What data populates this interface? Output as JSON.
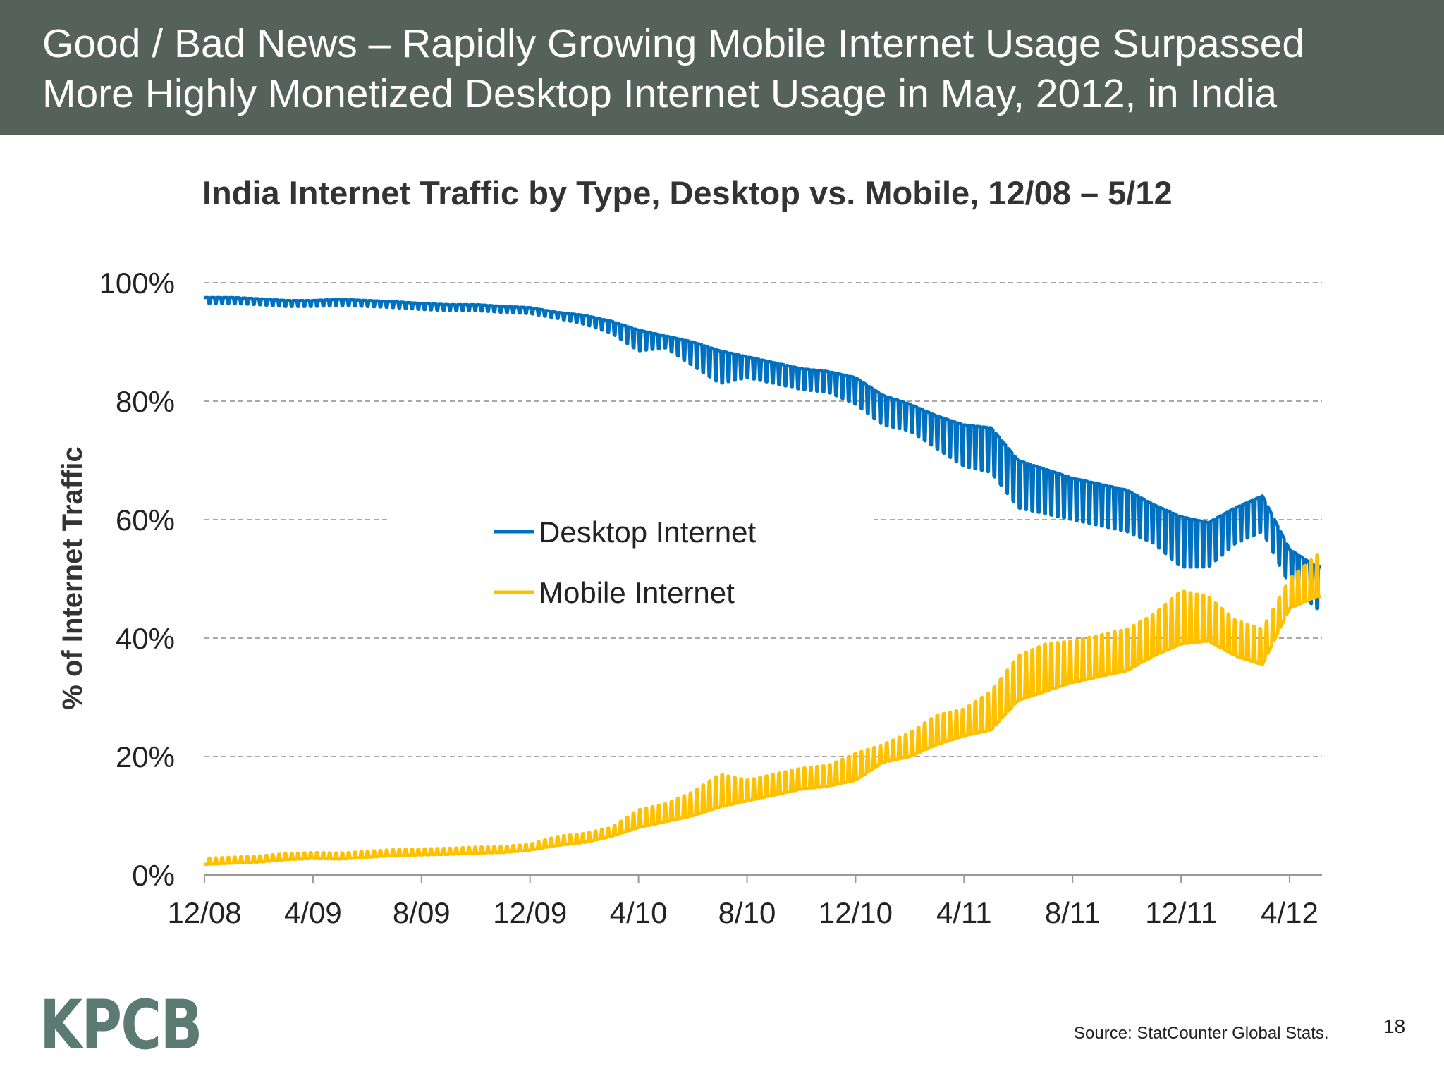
{
  "header": {
    "line1": "Good / Bad News – Rapidly Growing Mobile Internet Usage Surpassed",
    "line2": "More Highly Monetized Desktop Internet Usage in May, 2012, in India"
  },
  "chart_data": {
    "type": "line",
    "title": "India Internet Traffic by Type, Desktop vs. Mobile, 12/08 – 5/12",
    "ylabel": "% of Internet Traffic",
    "xlabel": "",
    "ylim": [
      0,
      100
    ],
    "yticks": [
      "0%",
      "20%",
      "40%",
      "60%",
      "80%",
      "100%"
    ],
    "xticks": [
      "12/08",
      "4/09",
      "8/09",
      "12/09",
      "4/10",
      "8/10",
      "12/10",
      "4/11",
      "8/11",
      "12/11",
      "4/12"
    ],
    "grid": true,
    "legend_position": "center",
    "months": [
      "12/08",
      "1/09",
      "2/09",
      "3/09",
      "4/09",
      "5/09",
      "6/09",
      "7/09",
      "8/09",
      "9/09",
      "10/09",
      "11/09",
      "12/09",
      "1/10",
      "2/10",
      "3/10",
      "4/10",
      "5/10",
      "6/10",
      "7/10",
      "8/10",
      "9/10",
      "10/10",
      "11/10",
      "12/10",
      "1/11",
      "2/11",
      "3/11",
      "4/11",
      "5/11",
      "6/11",
      "7/11",
      "8/11",
      "9/11",
      "10/11",
      "11/11",
      "12/11",
      "1/12",
      "2/12",
      "3/12",
      "4/12",
      "5/12"
    ],
    "series": [
      {
        "name": "Desktop Internet",
        "color": "#0070c0",
        "weekday_values": [
          97.5,
          97.5,
          97.3,
          97,
          97,
          97.2,
          97,
          96.8,
          96.5,
          96.3,
          96.3,
          96,
          95.8,
          95,
          94.5,
          93.5,
          92,
          91,
          90,
          88.5,
          87.5,
          86.5,
          85.5,
          85,
          84,
          81,
          79.5,
          77.5,
          76,
          75.5,
          70,
          68.5,
          67,
          66,
          65,
          62.5,
          60.5,
          59.5,
          62,
          64,
          55,
          52
        ],
        "weekend_values": [
          96.5,
          96.5,
          96.3,
          96,
          96,
          96.2,
          96,
          95.8,
          95.5,
          95.3,
          95.3,
          95,
          94.8,
          94,
          93,
          91.5,
          88.5,
          89,
          86,
          83,
          84,
          83,
          82,
          81.5,
          79.5,
          76,
          75,
          72,
          69,
          68,
          62,
          61,
          60,
          59,
          58,
          56,
          52,
          52,
          56,
          58,
          49,
          45
        ]
      },
      {
        "name": "Mobile Internet",
        "color": "#ffc000",
        "weekday_values": [
          1.8,
          2,
          2.2,
          2.6,
          2.8,
          2.7,
          3,
          3.3,
          3.4,
          3.5,
          3.7,
          3.8,
          4.2,
          5,
          5.5,
          6.5,
          8,
          9,
          10,
          11.5,
          12.5,
          13.5,
          14.5,
          15,
          16,
          19,
          20,
          22,
          23.5,
          24.5,
          29.5,
          31,
          32.5,
          33.5,
          34.5,
          37,
          39,
          39.5,
          37,
          35.5,
          45,
          47
        ],
        "weekend_values": [
          2.8,
          3,
          3.2,
          3.6,
          3.8,
          3.7,
          4,
          4.3,
          4.4,
          4.5,
          4.7,
          4.8,
          5.2,
          6.5,
          7,
          8,
          11,
          12,
          14,
          17,
          16,
          17,
          18,
          18.5,
          20.5,
          22,
          24,
          27,
          28,
          31,
          37,
          39,
          39.5,
          40.5,
          41.5,
          44,
          48,
          47,
          43,
          41.5,
          50,
          54
        ]
      }
    ]
  },
  "footer": {
    "logo": "KPCB",
    "source": "Source: StatCounter Global Stats.",
    "page_number": "18"
  }
}
